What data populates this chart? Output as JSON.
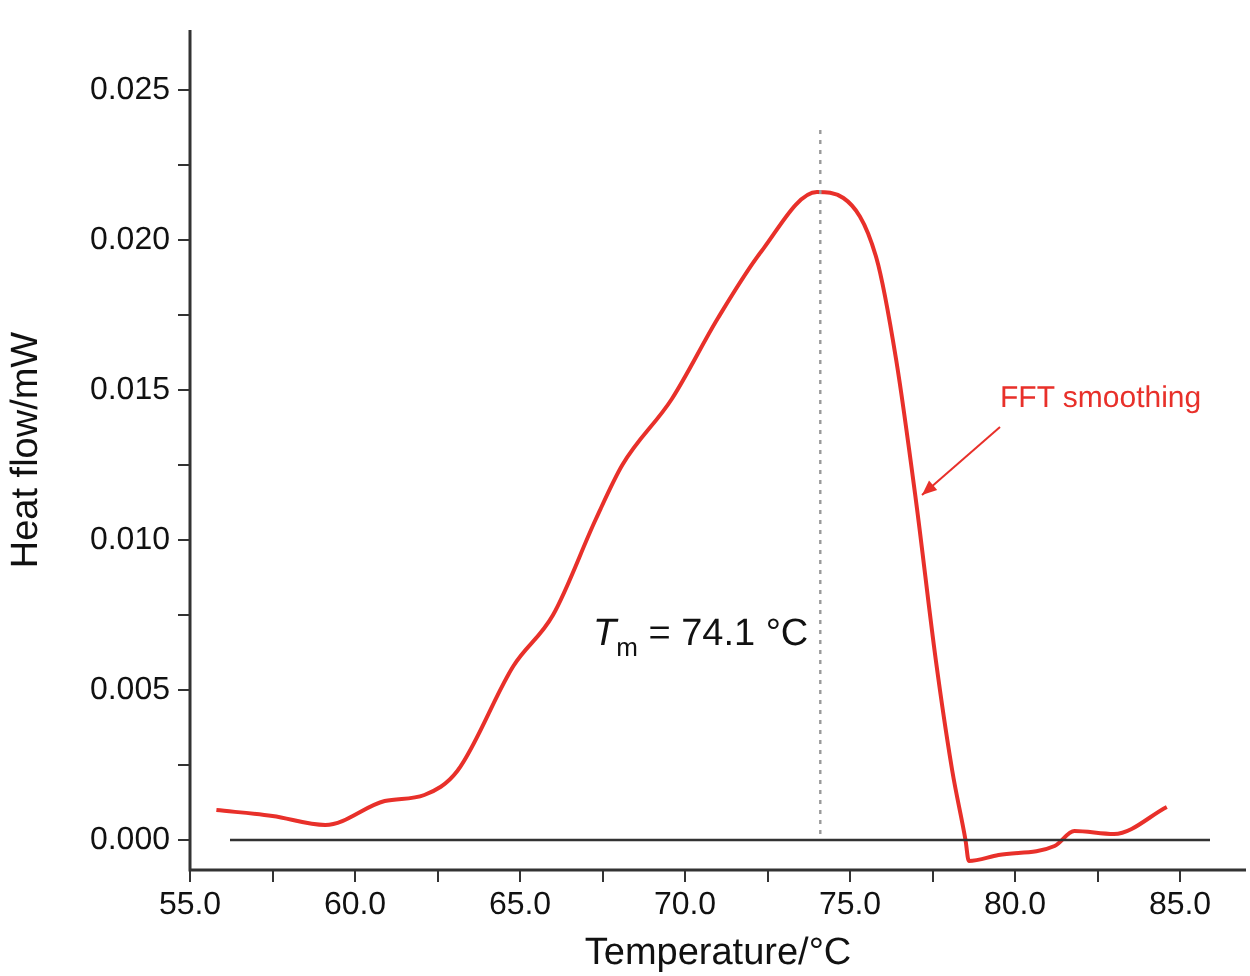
{
  "chart_data": {
    "type": "line",
    "xlabel": "Temperature/°C",
    "ylabel": "Heat flow/mW",
    "x": [
      55.8,
      57.5,
      59.1,
      60.9,
      62.1,
      63.1,
      64.8,
      66.0,
      67.3,
      68.1,
      69.6,
      71.0,
      72.3,
      74.0,
      74.8,
      75.8,
      76.4,
      77.0,
      77.6,
      78.1,
      78.5,
      78.6,
      79.5,
      81.2,
      81.8,
      83.0,
      84.6
    ],
    "series": [
      {
        "color": "#e8302a",
        "values": [
          0.001,
          0.0008,
          0.0005,
          0.0013,
          0.0015,
          0.0023,
          0.0058,
          0.0075,
          0.0107,
          0.0125,
          0.0147,
          0.0174,
          0.0196,
          0.0216,
          0.0214,
          0.0194,
          0.016,
          0.0113,
          0.006,
          0.0023,
          0.0,
          -0.0007,
          -0.0005,
          -0.0002,
          0.0003,
          0.0002,
          0.0011
        ]
      }
    ],
    "xlim": [
      55,
      87
    ],
    "ylim": [
      -0.001,
      0.027
    ],
    "xticks": [
      {
        "value": 55,
        "label": "55.0"
      },
      {
        "value": 57.5,
        "label": null
      },
      {
        "value": 60,
        "label": "60.0"
      },
      {
        "value": 62.5,
        "label": null
      },
      {
        "value": 65,
        "label": "65.0"
      },
      {
        "value": 67.5,
        "label": null
      },
      {
        "value": 70,
        "label": "70.0"
      },
      {
        "value": 72.5,
        "label": null
      },
      {
        "value": 75,
        "label": "75.0"
      },
      {
        "value": 77.5,
        "label": null
      },
      {
        "value": 80,
        "label": "80.0"
      },
      {
        "value": 82.5,
        "label": null
      },
      {
        "value": 85,
        "label": "85.0"
      }
    ],
    "yticks": [
      {
        "value": 0,
        "label": "0.000"
      },
      {
        "value": 0.0025,
        "label": null
      },
      {
        "value": 0.005,
        "label": "0.005"
      },
      {
        "value": 0.0075,
        "label": null
      },
      {
        "value": 0.01,
        "label": "0.010"
      },
      {
        "value": 0.0125,
        "label": null
      },
      {
        "value": 0.015,
        "label": "0.015"
      },
      {
        "value": 0.0175,
        "label": null
      },
      {
        "value": 0.02,
        "label": "0.020"
      },
      {
        "value": 0.0225,
        "label": null
      },
      {
        "value": 0.025,
        "label": "0.025"
      }
    ],
    "ref_lines": [
      {
        "axis": "y",
        "value": 0,
        "color": "#333333",
        "line_style": "solid"
      },
      {
        "axis": "x",
        "value": 74.1,
        "label": "T$_{m}$ = 74.1 °C",
        "color": "#999999",
        "line_style": "dotted"
      }
    ],
    "annotations": [
      {
        "text": "FFT smoothing",
        "x": 77.0,
        "y": 0.0113
      }
    ],
    "grid": false,
    "legend": false,
    "marker": "none",
    "line_style": "solid"
  }
}
